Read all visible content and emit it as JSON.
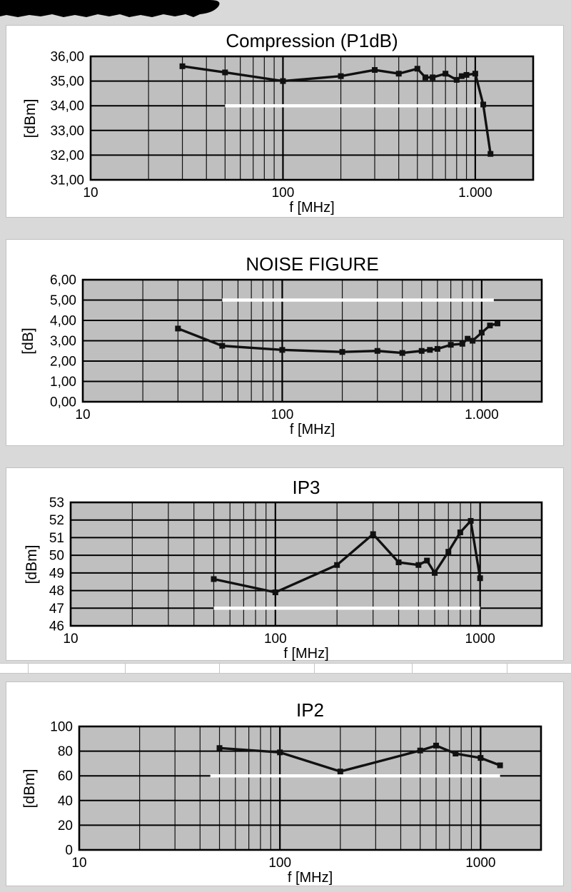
{
  "page": {
    "background": "#d9d9d9",
    "header_banner": {
      "color": "#000000"
    }
  },
  "style_colors": {
    "plot_background": "#bfbfbf",
    "grid_line": "#111111",
    "series_line": "#111111",
    "limit_line": "#ffffff",
    "text": "#000000"
  },
  "chart_data": [
    {
      "type": "line",
      "title": "Compression (P1dB)",
      "ylabel": "[dBm]",
      "xlabel": "f [MHz]",
      "xscale": "log",
      "xlim": [
        10,
        2000
      ],
      "ylim": [
        31,
        36
      ],
      "grid": true,
      "legend": "none",
      "yticks": [
        {
          "value": 36,
          "label": "36,00"
        },
        {
          "value": 35,
          "label": "35,00"
        },
        {
          "value": 34,
          "label": "34,00"
        },
        {
          "value": 33,
          "label": "33,00"
        },
        {
          "value": 32,
          "label": "32,00"
        },
        {
          "value": 31,
          "label": "31,00"
        }
      ],
      "xticks": [
        {
          "value": 10,
          "label": "10"
        },
        {
          "value": 100,
          "label": "100"
        },
        {
          "value": 1000,
          "label": "1.000"
        }
      ],
      "series": [
        {
          "name": "P1dB",
          "marker": "square",
          "x": [
            30,
            50,
            100,
            200,
            300,
            400,
            500,
            550,
            600,
            700,
            800,
            850,
            900,
            1000,
            1100,
            1200
          ],
          "y": [
            35.6,
            35.35,
            35.0,
            35.2,
            35.45,
            35.3,
            35.5,
            35.15,
            35.15,
            35.3,
            35.05,
            35.2,
            35.25,
            35.3,
            34.05,
            32.05
          ]
        }
      ],
      "limit_line": {
        "value": 34.0,
        "x_start": 50,
        "x_end": 1130
      }
    },
    {
      "type": "line",
      "title": "NOISE FIGURE",
      "ylabel": "[dB]",
      "xlabel": "f [MHz]",
      "xscale": "log",
      "xlim": [
        10,
        2000
      ],
      "ylim": [
        0,
        6
      ],
      "grid": true,
      "legend": "none",
      "yticks": [
        {
          "value": 6,
          "label": "6,00"
        },
        {
          "value": 5,
          "label": "5,00"
        },
        {
          "value": 4,
          "label": "4,00"
        },
        {
          "value": 3,
          "label": "3,00"
        },
        {
          "value": 2,
          "label": "2,00"
        },
        {
          "value": 1,
          "label": "1,00"
        },
        {
          "value": 0,
          "label": "0,00"
        }
      ],
      "xticks": [
        {
          "value": 10,
          "label": "10"
        },
        {
          "value": 100,
          "label": "100"
        },
        {
          "value": 1000,
          "label": "1.000"
        }
      ],
      "series": [
        {
          "name": "Noise Figure",
          "marker": "square",
          "x": [
            30,
            50,
            100,
            200,
            300,
            400,
            500,
            550,
            600,
            700,
            800,
            850,
            900,
            1000,
            1100,
            1200
          ],
          "y": [
            3.6,
            2.75,
            2.55,
            2.45,
            2.5,
            2.4,
            2.5,
            2.55,
            2.6,
            2.8,
            2.85,
            3.1,
            3.0,
            3.4,
            3.75,
            3.85
          ]
        }
      ],
      "limit_line": {
        "value": 5.0,
        "x_start": 50,
        "x_end": 1150
      }
    },
    {
      "type": "line",
      "title": "IP3",
      "ylabel": "[dBm]",
      "xlabel": "f [MHz]",
      "xscale": "log",
      "xlim": [
        10,
        2000
      ],
      "ylim": [
        46,
        53
      ],
      "grid": true,
      "legend": "none",
      "yticks": [
        {
          "value": 53,
          "label": "53"
        },
        {
          "value": 52,
          "label": "52"
        },
        {
          "value": 51,
          "label": "51"
        },
        {
          "value": 50,
          "label": "50"
        },
        {
          "value": 49,
          "label": "49"
        },
        {
          "value": 48,
          "label": "48"
        },
        {
          "value": 47,
          "label": "47"
        },
        {
          "value": 46,
          "label": "46"
        }
      ],
      "xticks": [
        {
          "value": 10,
          "label": "10"
        },
        {
          "value": 100,
          "label": "100"
        },
        {
          "value": 1000,
          "label": "1000"
        }
      ],
      "series": [
        {
          "name": "IP3",
          "marker": "square",
          "x": [
            50,
            100,
            200,
            300,
            400,
            500,
            550,
            600,
            700,
            800,
            900,
            1000
          ],
          "y": [
            48.65,
            47.9,
            49.45,
            51.2,
            49.6,
            49.45,
            49.7,
            49.0,
            50.2,
            51.3,
            51.95,
            48.7
          ]
        }
      ],
      "limit_line": {
        "value": 47.0,
        "x_start": 50,
        "x_end": 1000
      }
    },
    {
      "type": "line",
      "title": "IP2",
      "ylabel": "[dBm]",
      "xlabel": "f [MHz]",
      "xscale": "log",
      "xlim": [
        10,
        2000
      ],
      "ylim": [
        0,
        100
      ],
      "grid": true,
      "legend": "none",
      "yticks": [
        {
          "value": 100,
          "label": "100"
        },
        {
          "value": 80,
          "label": "80"
        },
        {
          "value": 60,
          "label": "60"
        },
        {
          "value": 40,
          "label": "40"
        },
        {
          "value": 20,
          "label": "20"
        },
        {
          "value": 0,
          "label": "0"
        }
      ],
      "xticks": [
        {
          "value": 10,
          "label": "10"
        },
        {
          "value": 100,
          "label": "100"
        },
        {
          "value": 1000,
          "label": "1000"
        }
      ],
      "series": [
        {
          "name": "IP2",
          "marker": "square",
          "x": [
            50,
            100,
            200,
            500,
            600,
            750,
            1000,
            1250
          ],
          "y": [
            82.5,
            79.0,
            63.5,
            80.5,
            84.5,
            78.0,
            74.5,
            68.5
          ]
        }
      ],
      "limit_line": {
        "value": 60.0,
        "x_start": 45,
        "x_end": 1250
      }
    }
  ]
}
